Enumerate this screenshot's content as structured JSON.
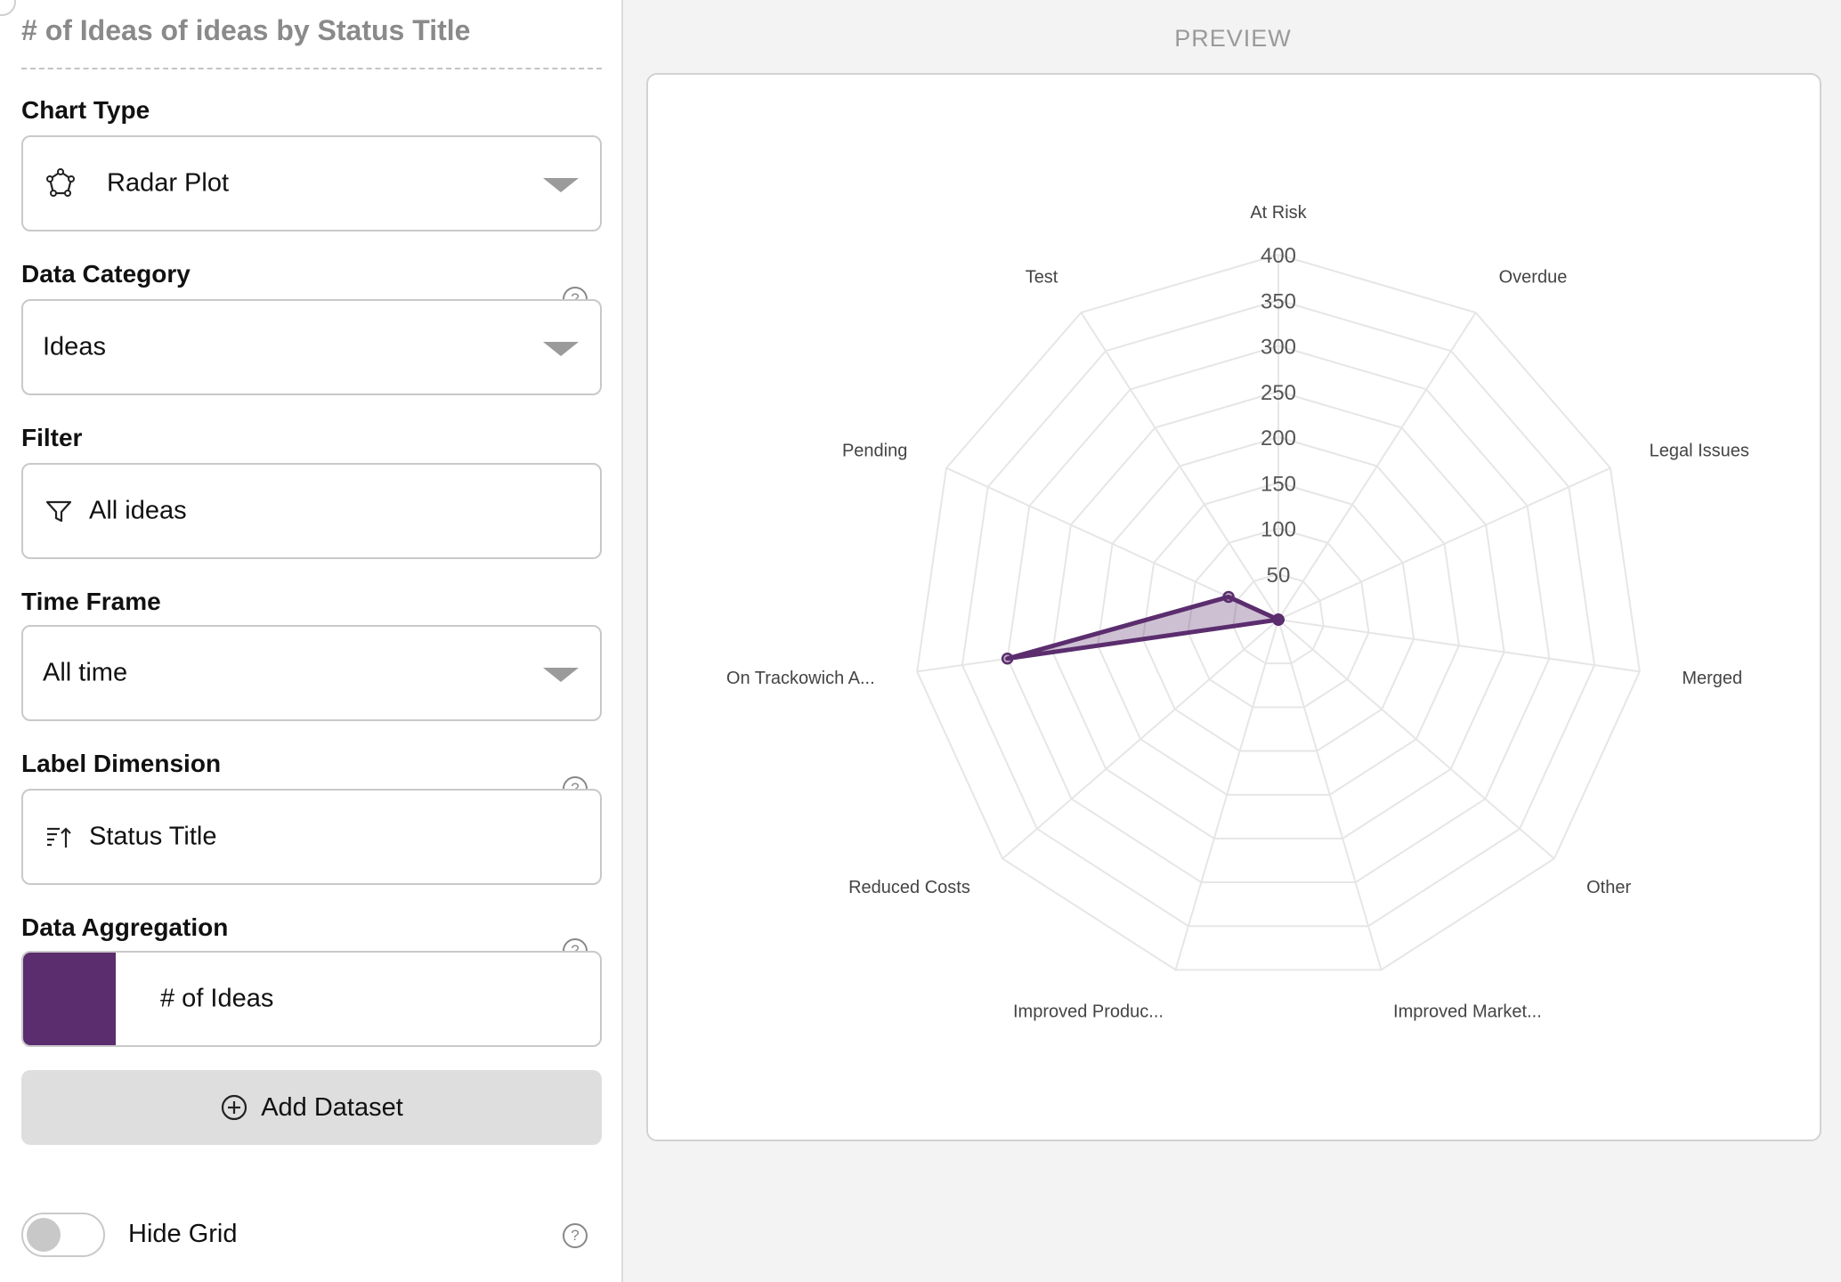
{
  "left_panel": {
    "title": "# of Ideas of ideas by Status Title",
    "chart_type": {
      "label": "Chart Type",
      "value": "Radar Plot",
      "icon": "radar-icon"
    },
    "data_category": {
      "label": "Data Category",
      "value": "Ideas",
      "help": "?"
    },
    "filter": {
      "label": "Filter",
      "value": "All ideas",
      "icon": "filter-icon"
    },
    "time_frame": {
      "label": "Time Frame",
      "value": "All time"
    },
    "label_dimension": {
      "label": "Label Dimension",
      "value": "Status Title",
      "icon": "sort-ascending-icon",
      "help": "?"
    },
    "data_aggregation": {
      "label": "Data Aggregation",
      "value": "# of Ideas",
      "color": "#5b2d6e",
      "help": "?"
    },
    "add_dataset": {
      "label": "Add Dataset",
      "icon": "plus-circle-icon"
    },
    "hide_grid": {
      "label": "Hide Grid",
      "checked": false,
      "help": "?"
    }
  },
  "preview": {
    "title": "PREVIEW"
  },
  "chart_data": {
    "type": "radar",
    "categories": [
      "At Risk",
      "Overdue",
      "Legal Issues",
      "Merged",
      "Other",
      "Improved Market...",
      "Improved Produc...",
      "Reduced Costs",
      "On Trackowich A...",
      "Pending",
      "Test"
    ],
    "series": [
      {
        "values": [
          0,
          0,
          0,
          0,
          0,
          0,
          0,
          0,
          300,
          60,
          0
        ],
        "color": "#5b2d6e",
        "fill": "rgba(91,45,110,0.3)"
      }
    ],
    "rlim": [
      0,
      400
    ],
    "ticks": [
      50,
      100,
      150,
      200,
      250,
      300,
      350,
      400
    ],
    "grid": true,
    "legend": "none"
  }
}
